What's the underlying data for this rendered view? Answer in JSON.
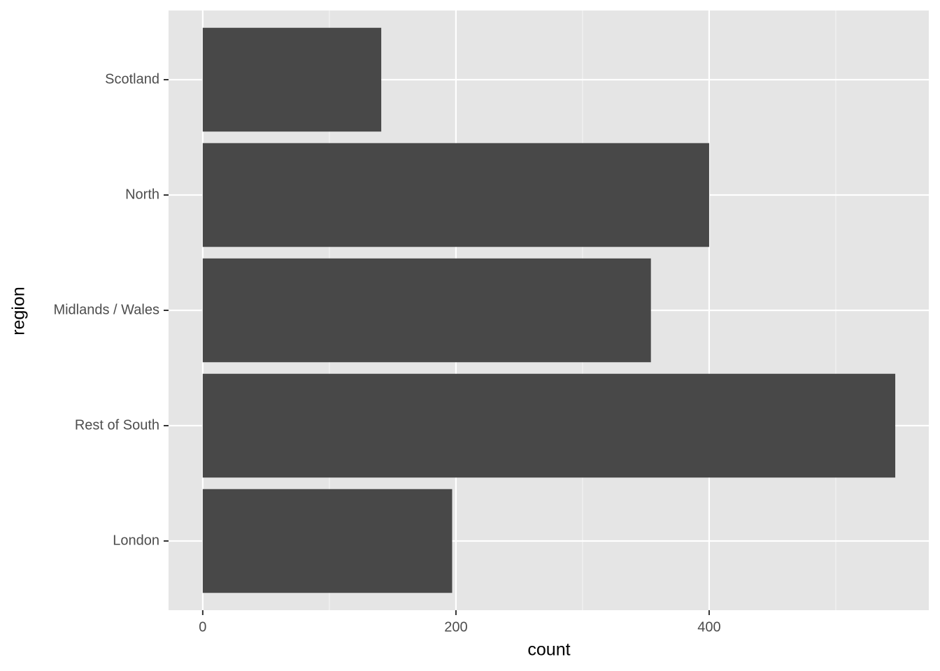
{
  "chart_data": {
    "type": "barh",
    "x_label": "count",
    "y_label": "region",
    "categories": [
      "London",
      "Rest of South",
      "Midlands / Wales",
      "North",
      "Scotland"
    ],
    "values": [
      197,
      547,
      354,
      400,
      141
    ],
    "color": "#484848",
    "xlim": [
      -27,
      573.5
    ],
    "xticks": [
      0,
      200,
      400
    ],
    "minor_xticks": [
      100,
      300,
      500
    ],
    "grid": true
  }
}
